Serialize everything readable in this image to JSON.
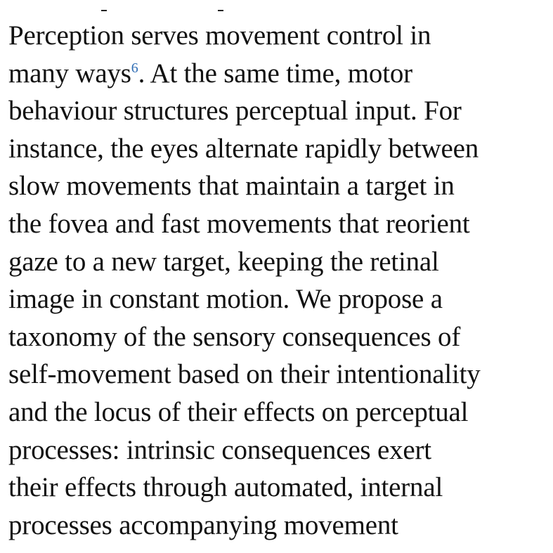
{
  "paragraph": {
    "lines": [
      "Perception serves movement control in",
      "many ways",
      ". At the same time, motor",
      "behaviour structures perceptual input. For",
      "instance, the eyes alternate rapidly between",
      "slow movements that maintain a target in",
      "the fovea and fast movements that reorient",
      "gaze to a new target, keeping the retinal",
      "image in constant motion. We propose a",
      "taxonomy of the sensory consequences of",
      "self-movement based on their intentionality",
      "and the locus of their effects on perceptual",
      "processes: intrinsic consequences exert",
      "their effects through automated, internal",
      "processes accompanying movement"
    ],
    "reference": "6",
    "reference_color": "#2f6db5"
  }
}
